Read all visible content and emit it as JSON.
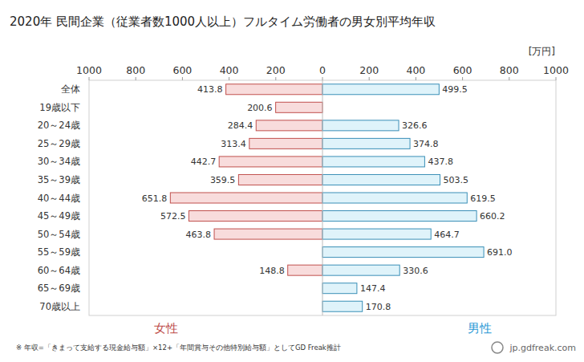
{
  "chart_data": {
    "type": "bar",
    "orientation": "horizontal",
    "title": "2020年 民間企業（従業者数1000人以上）フルタイム労働者の男女別平均年収",
    "x_label": "[万円]",
    "categories": [
      "全体",
      "19歳以下",
      "20～24歳",
      "25～29歳",
      "30～34歳",
      "35～39歳",
      "40～44歳",
      "45～49歳",
      "50～54歳",
      "55～59歳",
      "60～64歳",
      "65～69歳",
      "70歳以上"
    ],
    "series": [
      {
        "name": "女性",
        "color": "#f8dcdc",
        "label_color": "#c0504d",
        "xlim": [
          1000,
          0
        ],
        "xticks": [
          1000,
          800,
          600,
          400,
          200
        ],
        "values": [
          413.8,
          200.6,
          284.4,
          313.4,
          442.7,
          359.5,
          651.8,
          572.5,
          463.8,
          null,
          148.8,
          null,
          null
        ],
        "value_labels": [
          "413.8",
          "200.6",
          "284.4",
          "313.4",
          "442.7",
          "359.5",
          "651.8",
          "572.5",
          "463.8",
          null,
          "148.8",
          null,
          null
        ]
      },
      {
        "name": "男性",
        "color": "#dff3fa",
        "label_color": "#2e9bd6",
        "xlim": [
          0,
          1000
        ],
        "xticks": [
          0,
          200,
          400,
          600,
          800,
          1000
        ],
        "values": [
          499.5,
          null,
          326.6,
          374.8,
          437.8,
          503.5,
          619.5,
          660.2,
          464.7,
          691.0,
          330.6,
          147.4,
          170.8
        ],
        "value_labels": [
          "499.5",
          null,
          "326.6",
          "374.8",
          "437.8",
          "503.5",
          "619.5",
          "660.2",
          "464.7",
          "691.0",
          "330.6",
          "147.4",
          "170.8"
        ]
      }
    ],
    "data_labels": true,
    "grid": false,
    "note": "※ 年収=「きまって支給する現金給与額」×12+「年間賞与その他特別給与額」としてGD Freak推計",
    "source": "jp.gdfreak.com"
  }
}
